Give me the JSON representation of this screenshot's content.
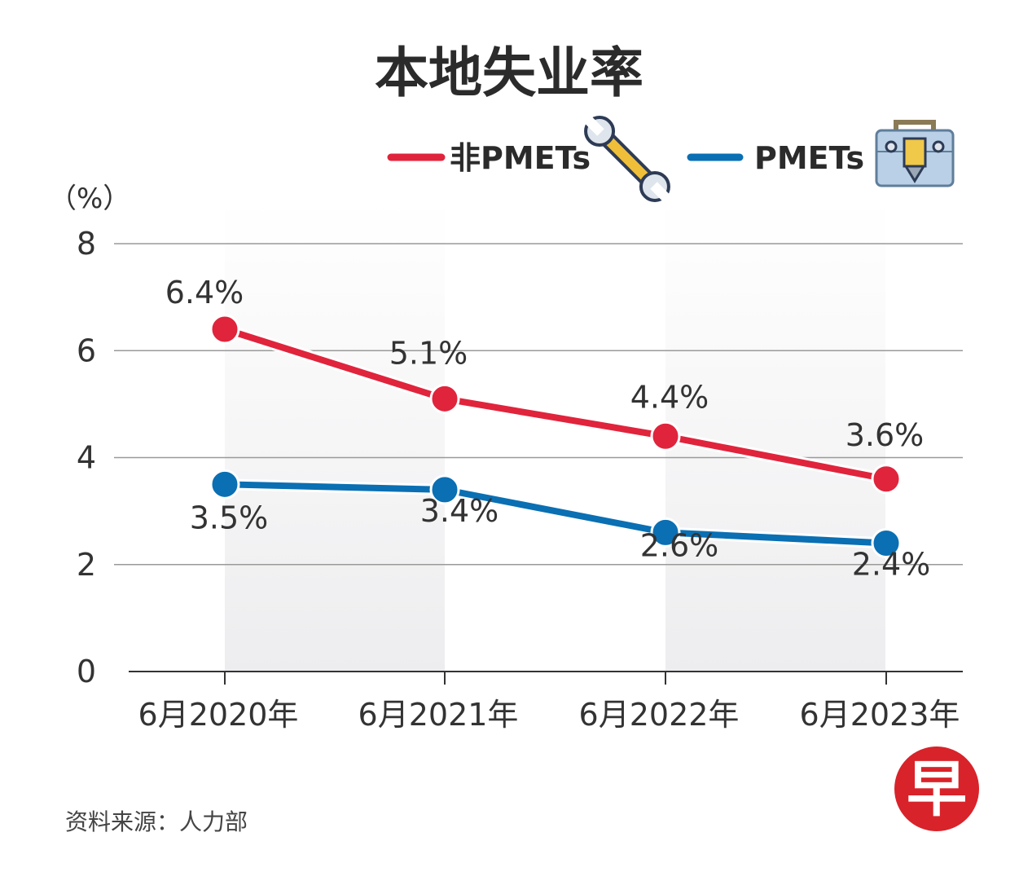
{
  "title": "本地失业率",
  "source": "资料来源：人力部",
  "logo": {
    "char": "早",
    "color": "#d8232a"
  },
  "legend": [
    {
      "label": "非PMETs",
      "color": "#e0243c",
      "icon": "wrench-icon"
    },
    {
      "label": "PMETs",
      "color": "#0a6fb3",
      "icon": "toolbox-icon"
    }
  ],
  "colors": {
    "red": "#e0243c",
    "blue": "#0a6fb3",
    "band": "#ededef",
    "grid": "#9a9a9a"
  },
  "chart_data": {
    "type": "line",
    "title": "本地失业率",
    "ylabel": "（%）",
    "xlabel": "",
    "ylim": [
      0,
      8
    ],
    "yticks": [
      0,
      2,
      4,
      6,
      8
    ],
    "categories": [
      "6月2020年",
      "6月2021年",
      "6月2022年",
      "6月2023年"
    ],
    "grid": true,
    "legend_position": "top-right",
    "series": [
      {
        "name": "非PMETs",
        "values": [
          6.4,
          5.1,
          4.4,
          3.6
        ],
        "labels": [
          "6.4%",
          "5.1%",
          "4.4%",
          "3.6%"
        ],
        "color": "#e0243c"
      },
      {
        "name": "PMETs",
        "values": [
          3.5,
          3.4,
          2.6,
          2.4
        ],
        "labels": [
          "3.5%",
          "3.4%",
          "2.6%",
          "2.4%"
        ],
        "color": "#0a6fb3"
      }
    ]
  }
}
